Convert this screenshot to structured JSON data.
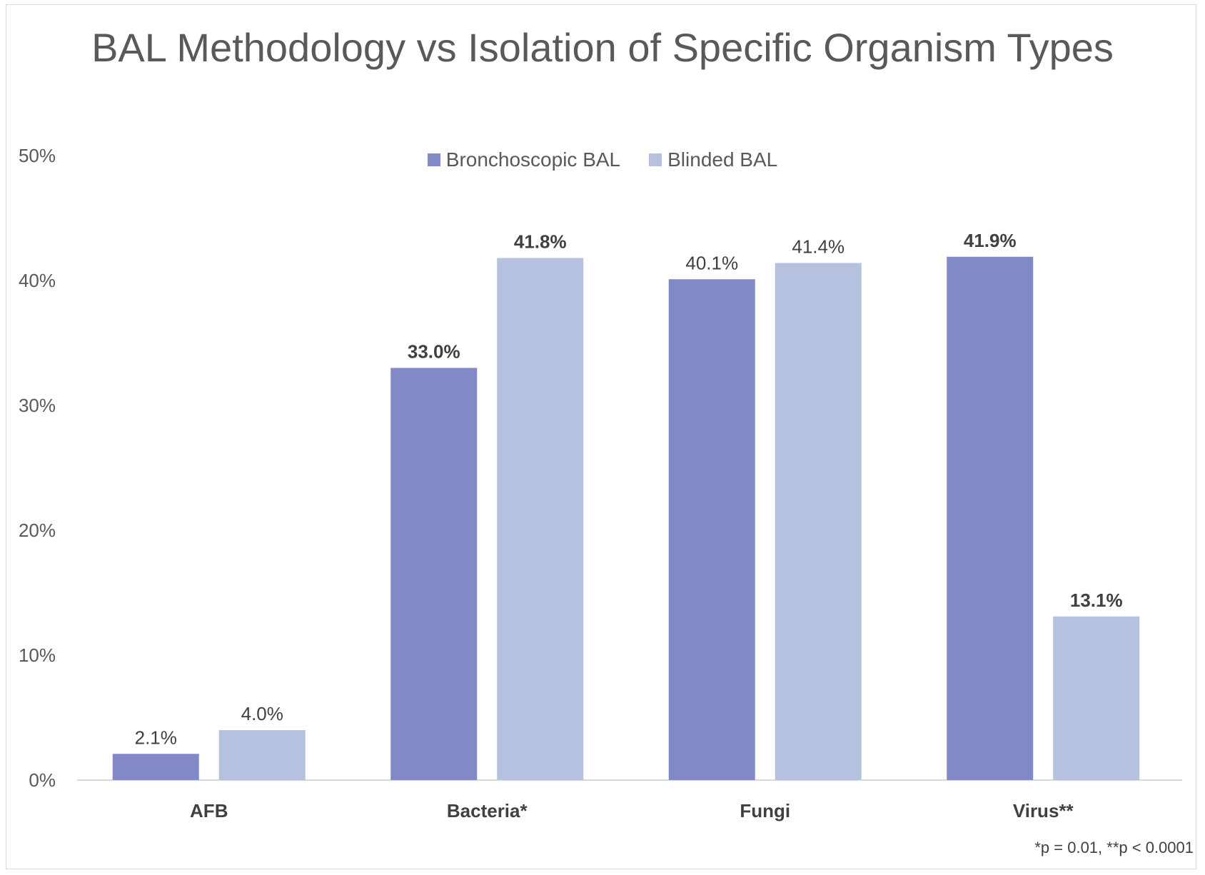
{
  "chart_data": {
    "type": "bar",
    "title": "BAL Methodology vs Isolation of Specific Organism Types",
    "categories": [
      "AFB",
      "Bacteria*",
      "Fungi",
      "Virus**"
    ],
    "series": [
      {
        "name": "Bronchoscopic BAL",
        "values": [
          2.1,
          33.0,
          40.1,
          41.9
        ],
        "labels": [
          "2.1%",
          "33.0%",
          "40.1%",
          "41.9%"
        ],
        "bold": [
          false,
          true,
          false,
          true
        ],
        "color": "#8389C7"
      },
      {
        "name": "Blinded BAL",
        "values": [
          4.0,
          41.8,
          41.4,
          13.1
        ],
        "labels": [
          "4.0%",
          "41.8%",
          "41.4%",
          "13.1%"
        ],
        "bold": [
          false,
          true,
          false,
          true
        ],
        "color": "#B6C1DF"
      }
    ],
    "yticks": [
      "0%",
      "10%",
      "20%",
      "30%",
      "40%",
      "50%"
    ],
    "ylim": [
      0,
      50
    ],
    "xlabel": "",
    "ylabel": "",
    "grid": false,
    "legend_position": "top"
  },
  "footnote": "*p = 0.01, **p < 0.0001"
}
